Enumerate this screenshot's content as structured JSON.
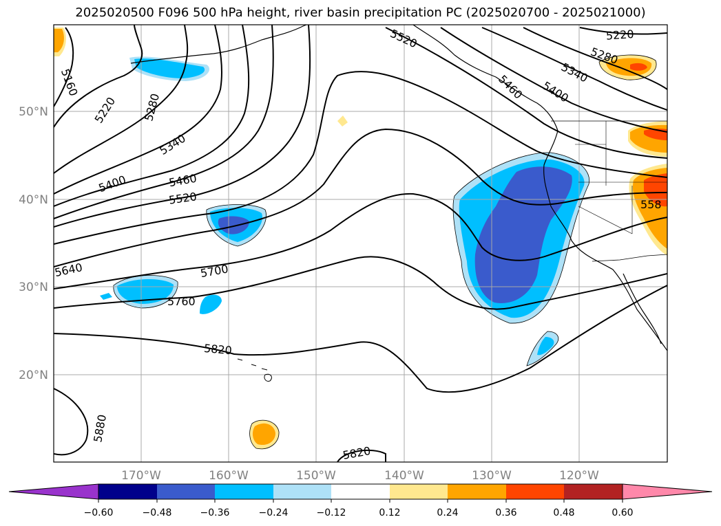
{
  "title": "2025020500 F096 500 hPa height, river basin precipitation PC (2025020700 - 2025021000)",
  "axes": {
    "x_ticks": [
      "170°W",
      "160°W",
      "150°W",
      "140°W",
      "130°W",
      "120°W"
    ],
    "y_ticks": [
      "50°N",
      "40°N",
      "30°N",
      "20°N"
    ],
    "tick_color": "#808080"
  },
  "contour_labels": [
    "5160",
    "5220",
    "5280",
    "5340",
    "5400",
    "5460",
    "5520",
    "5640",
    "5700",
    "5760",
    "5820",
    "5880",
    "5520",
    "5220",
    "5280",
    "5340",
    "5400",
    "5460",
    "558",
    "5820"
  ],
  "colorbar": {
    "ticks": [
      "−0.60",
      "−0.48",
      "−0.36",
      "−0.24",
      "−0.12",
      "0.12",
      "0.24",
      "0.36",
      "0.48",
      "0.60"
    ],
    "colors": [
      "#9933cc",
      "#00008b",
      "#3a5bcc",
      "#00bfff",
      "#aee1f7",
      "#ffffff",
      "#ffe88f",
      "#ffa500",
      "#ff4500",
      "#b22222",
      "#ff88aa"
    ]
  }
}
